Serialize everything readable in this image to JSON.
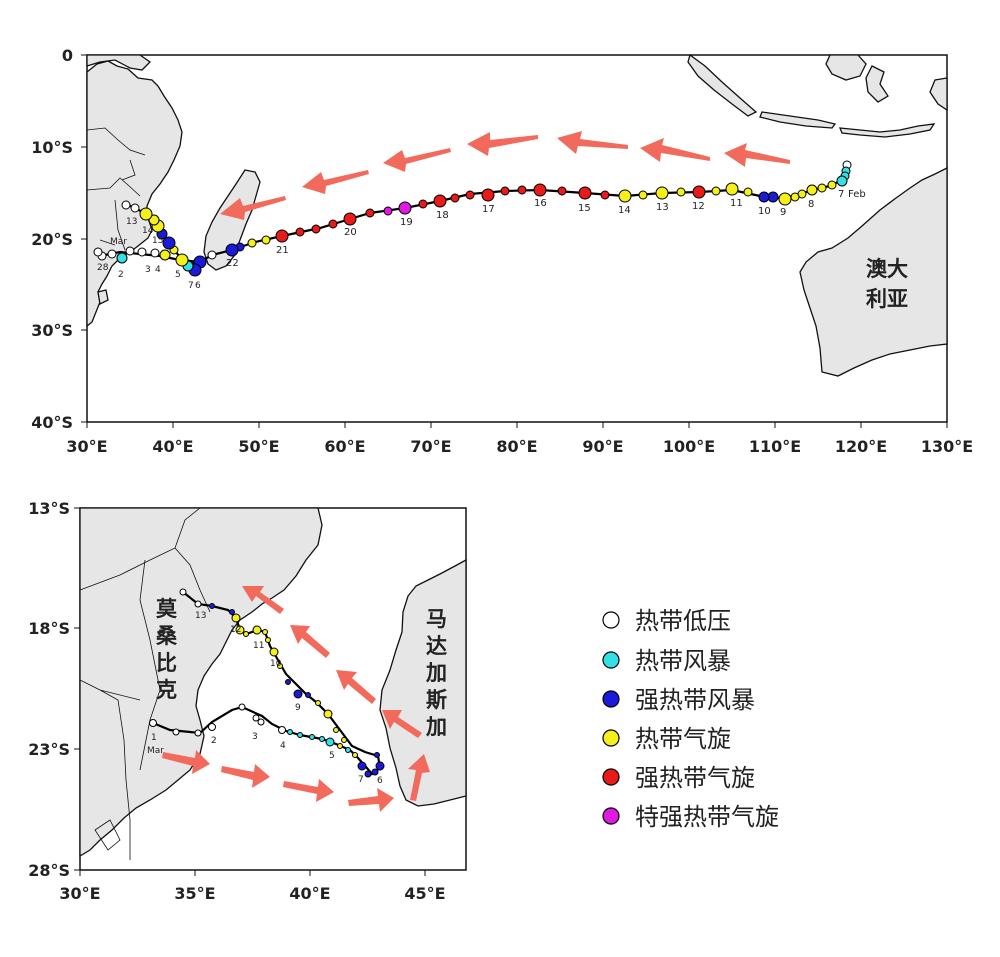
{
  "top_map": {
    "x_ticks": [
      "30°E",
      "40°E",
      "50°E",
      "60°E",
      "70°E",
      "80°E",
      "90°E",
      "100°E",
      "110°E",
      "120°E",
      "130°E"
    ],
    "y_ticks": [
      "0",
      "10°S",
      "20°S",
      "30°S",
      "40°S"
    ],
    "region_label_line1": "澳大",
    "region_label_line2": "利亚",
    "feb_label": "Feb",
    "mar_label": "Mar",
    "day_labels": [
      "7",
      "8",
      "9",
      "10",
      "11",
      "12",
      "13",
      "14",
      "15",
      "16",
      "17",
      "18",
      "19",
      "20",
      "21",
      "22",
      "13",
      "14",
      "15",
      "7",
      "6",
      "5",
      "4",
      "3",
      "2",
      "1",
      "28"
    ]
  },
  "inset_map": {
    "x_ticks": [
      "30°E",
      "35°E",
      "40°E",
      "45°E"
    ],
    "y_ticks": [
      "13°S",
      "18°S",
      "23°S",
      "28°S"
    ],
    "mozambique_label": [
      "莫",
      "桑",
      "比",
      "克"
    ],
    "madagascar_label": [
      "马",
      "达",
      "加",
      "斯",
      "加"
    ],
    "mar_label": "Mar",
    "day_labels": [
      "1",
      "2",
      "3",
      "4",
      "5",
      "6",
      "7",
      "9",
      "10",
      "11",
      "12",
      "13"
    ]
  },
  "legend": {
    "items": [
      {
        "label": "热带低压",
        "color": "#ffffff"
      },
      {
        "label": "热带风暴",
        "color": "#33e0e6"
      },
      {
        "label": "强热带风暴",
        "color": "#1a1adb"
      },
      {
        "label": "热带气旋",
        "color": "#f5f01a"
      },
      {
        "label": "强热带气旋",
        "color": "#e81a1a"
      },
      {
        "label": "特强热带气旋",
        "color": "#e01ae0"
      }
    ]
  }
}
